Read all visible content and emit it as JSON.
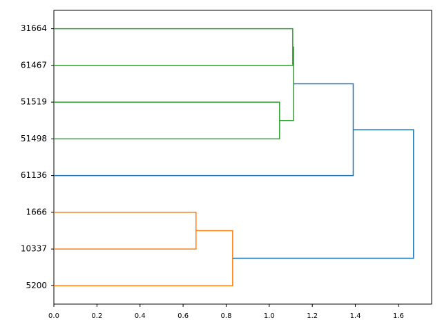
{
  "chart_data": {
    "type": "dendrogram",
    "orientation": "left",
    "xlim": [
      0,
      1.754
    ],
    "xticks": [
      {
        "value": 0,
        "label": "0.0"
      },
      0.2,
      0.4,
      0.6,
      0.8,
      {
        "value": 1,
        "label": "1.0"
      },
      1.2,
      1.4,
      1.6
    ],
    "tree": {
      "height": 1.67,
      "color": "#1f77b4",
      "children": [
        {
          "height": 1.39,
          "color": "#1f77b4",
          "children": [
            {
              "height": 1.113,
              "color": "#2ca02c",
              "children": [
                {
                  "height": 1.109,
                  "color": "#2ca02c",
                  "children": [
                    {
                      "label": "31664"
                    },
                    {
                      "label": "61467"
                    }
                  ]
                },
                {
                  "height": 1.048,
                  "color": "#2ca02c",
                  "children": [
                    {
                      "label": "51519"
                    },
                    {
                      "label": "51498"
                    }
                  ]
                }
              ]
            },
            {
              "label": "61136"
            }
          ]
        },
        {
          "height": 0.83,
          "color": "#ff7f0e",
          "children": [
            {
              "height": 0.66,
              "color": "#ff7f0e",
              "children": [
                {
                  "label": "1666"
                },
                {
                  "label": "10337"
                }
              ]
            },
            {
              "label": "5200"
            }
          ]
        }
      ]
    }
  }
}
